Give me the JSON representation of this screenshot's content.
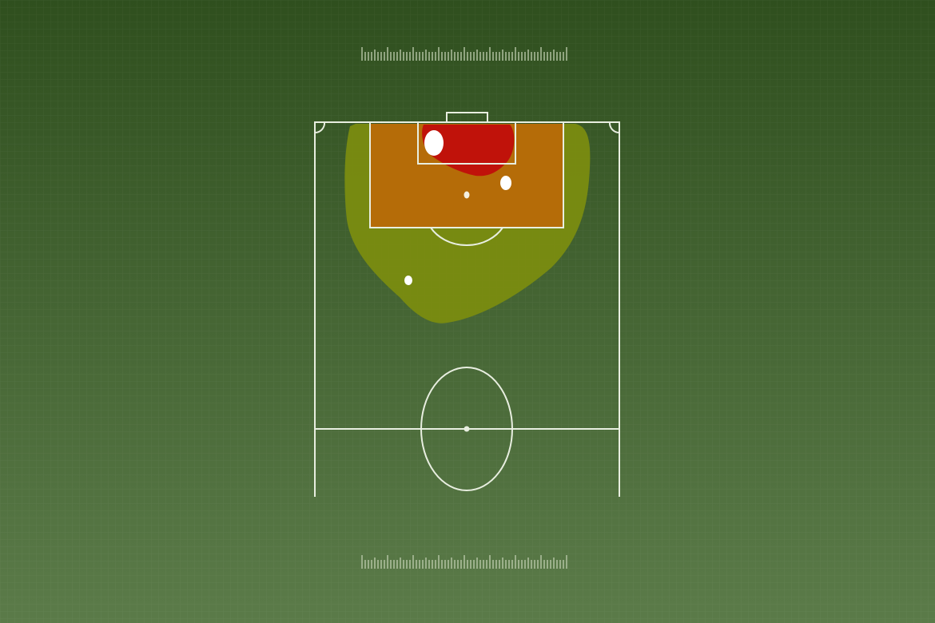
{
  "colors": {
    "background_top": "#2f4f1e",
    "background_bottom": "#5b7b49",
    "pitch_lines": "#e8eee0",
    "heat_low": "#7a8c10",
    "heat_mid": "#b86a08",
    "heat_high": "#c0120a",
    "shot_markers": "#ffffff"
  },
  "rulers": {
    "top": true,
    "bottom": true
  }
}
